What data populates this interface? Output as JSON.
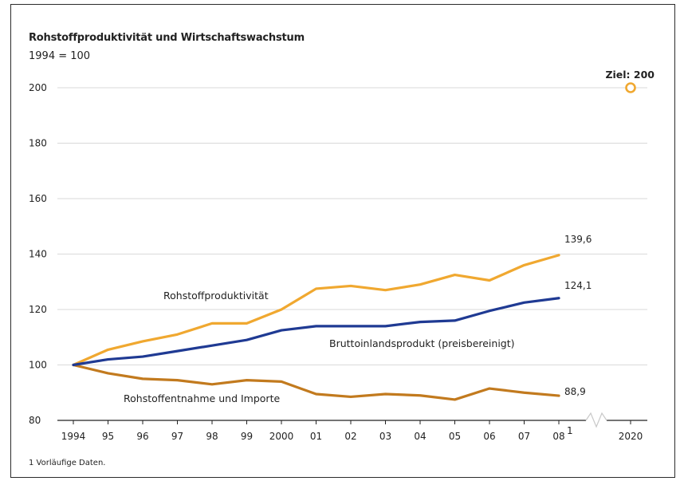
{
  "chart_data": {
    "type": "line",
    "title": "Rohstoffproduktivität und Wirtschaftswachstum",
    "subtitle": "1994 = 100",
    "x": [
      "1994",
      "95",
      "96",
      "97",
      "98",
      "99",
      "2000",
      "01",
      "02",
      "03",
      "04",
      "05",
      "06",
      "07",
      "08"
    ],
    "x_footnote_marker": "1",
    "x_break_label": "2020",
    "ylim": [
      80,
      200
    ],
    "yticks": [
      "80",
      "100",
      "120",
      "140",
      "160",
      "180",
      "200"
    ],
    "grid": true,
    "series": [
      {
        "name": "Rohstoffproduktivität",
        "color": "#f0a830",
        "values": [
          100,
          105.5,
          108.5,
          111,
          115,
          115,
          120,
          127.5,
          128.5,
          127,
          129,
          132.5,
          130.5,
          136,
          139.6
        ],
        "end_label": "139,6"
      },
      {
        "name": "Bruttoinlandsprodukt (preisbereinigt)",
        "color": "#1f3a93",
        "values": [
          100,
          102,
          103,
          105,
          107,
          109,
          112.5,
          114,
          114,
          114,
          115.5,
          116,
          119.5,
          122.5,
          124.1
        ],
        "end_label": "124,1"
      },
      {
        "name": "Rohstoffentnahme und Importe",
        "color": "#c27a1e",
        "values": [
          100,
          97,
          95,
          94.5,
          93,
          94.5,
          94,
          89.5,
          88.5,
          89.5,
          89,
          87.5,
          91.5,
          90,
          88.9
        ],
        "end_label": "88,9"
      }
    ],
    "target": {
      "x": "2020",
      "value": 200,
      "label": "Ziel: 200",
      "color": "#f0a830"
    },
    "footnote": "1 Vorläufige Daten."
  }
}
